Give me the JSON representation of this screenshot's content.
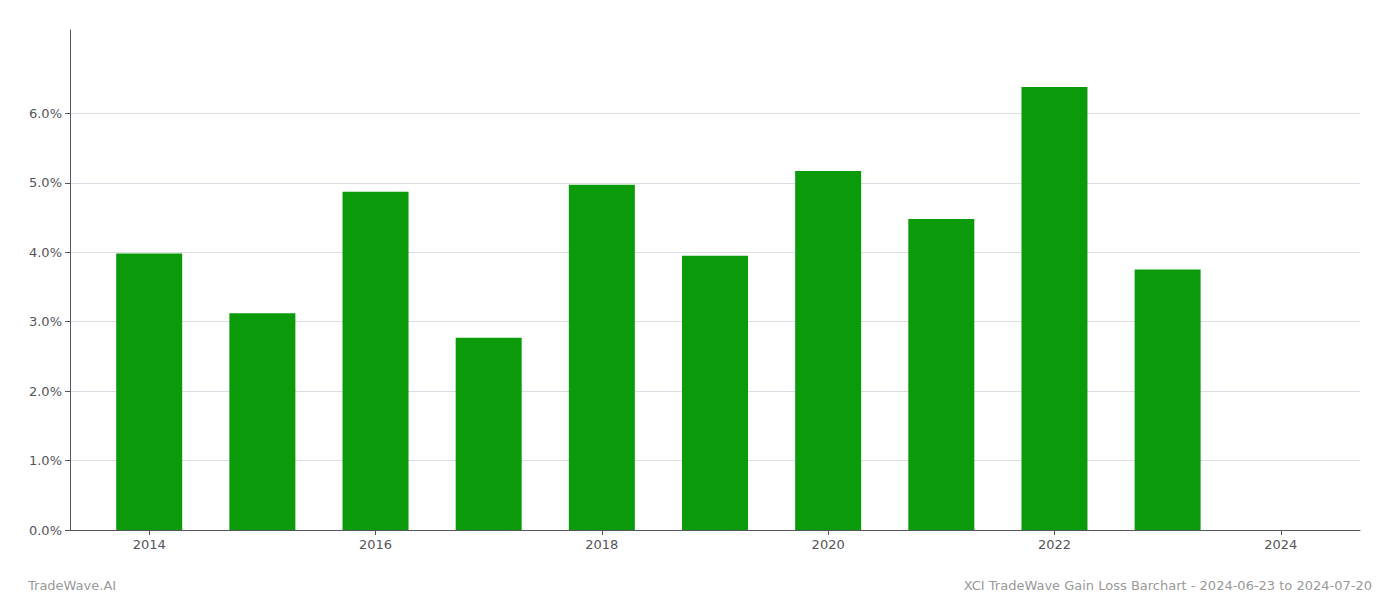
{
  "chart_data": {
    "type": "bar",
    "x": [
      2014,
      2015,
      2016,
      2017,
      2018,
      2019,
      2020,
      2021,
      2022,
      2023
    ],
    "values": [
      0.0398,
      0.0312,
      0.0487,
      0.0277,
      0.0497,
      0.0395,
      0.0517,
      0.0448,
      0.0638,
      0.0375
    ],
    "color": "#0a9a0a",
    "xlim": [
      2013.3,
      2024.7
    ],
    "xticks": [
      2014,
      2016,
      2018,
      2020,
      2022,
      2024
    ],
    "ylim": [
      0.0,
      0.072
    ],
    "yticks": [
      {
        "value": 0.0,
        "label": "0.0%"
      },
      {
        "value": 0.01,
        "label": "1.0%"
      },
      {
        "value": 0.02,
        "label": "2.0%"
      },
      {
        "value": 0.03,
        "label": "3.0%"
      },
      {
        "value": 0.04,
        "label": "4.0%"
      },
      {
        "value": 0.05,
        "label": "5.0%"
      },
      {
        "value": 0.06,
        "label": "6.0%"
      }
    ],
    "grid": true,
    "annotations": [
      "TradeWave.AI",
      "XCI TradeWave Gain Loss Barchart - 2024-06-23 to 2024-07-20"
    ]
  }
}
